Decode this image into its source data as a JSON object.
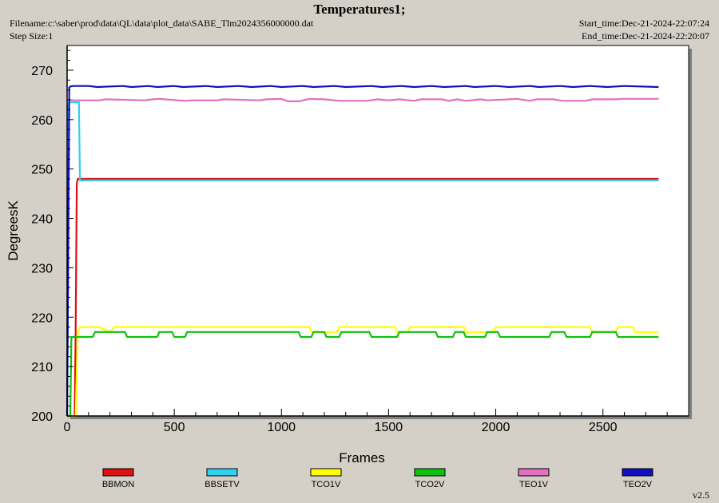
{
  "header": {
    "title": "Temperatures1;",
    "filename": "Filename:c:\\saber\\prod\\data\\QL\\data\\plot_data\\SABE_Tlm2024356000000.dat",
    "step_size": "Step Size:1",
    "start_time": "Start_time:Dec-21-2024-22:07:24",
    "end_time": "End_time:Dec-21-2024-22:20:07"
  },
  "version": "v2.5",
  "chart_data": {
    "type": "line",
    "xlabel": "Frames",
    "ylabel": "DegreesK",
    "xlim": [
      0,
      2900
    ],
    "ylim": [
      200,
      275
    ],
    "xticks": [
      0,
      500,
      1000,
      1500,
      2000,
      2500
    ],
    "yticks": [
      200,
      210,
      220,
      230,
      240,
      250,
      260,
      270
    ],
    "grid": false,
    "legend_position": "bottom",
    "series": [
      {
        "name": "BBMON",
        "color": "#e01010",
        "x": [
          0,
          35,
          40,
          45,
          50,
          2760
        ],
        "y": [
          200,
          200,
          217,
          247,
          248,
          248
        ]
      },
      {
        "name": "BBSETV",
        "color": "#30d0f0",
        "x": [
          0,
          5,
          10,
          20,
          55,
          60,
          2760
        ],
        "y": [
          200,
          263,
          263.5,
          263.5,
          263.5,
          247.7,
          247.7
        ]
      },
      {
        "name": "TCO1V",
        "color": "#ffff00",
        "x": [
          0,
          40,
          50,
          60,
          150,
          200,
          220,
          1130,
          1140,
          1260,
          1270,
          1530,
          1540,
          1590,
          1600,
          1850,
          1860,
          1990,
          2000,
          2440,
          2450,
          2560,
          2570,
          2640,
          2650,
          2760
        ],
        "y": [
          200,
          200,
          217,
          218,
          218,
          217,
          218,
          218,
          217,
          217,
          218,
          218,
          217,
          217,
          218,
          218,
          217,
          217,
          218,
          218,
          217,
          217,
          218,
          218,
          217,
          217
        ]
      },
      {
        "name": "TCO2V",
        "color": "#10c010",
        "x": [
          0,
          15,
          20,
          120,
          130,
          270,
          280,
          420,
          430,
          490,
          500,
          550,
          560,
          1080,
          1090,
          1140,
          1150,
          1200,
          1210,
          1270,
          1280,
          1410,
          1420,
          1540,
          1550,
          1720,
          1730,
          1800,
          1810,
          1850,
          1860,
          1950,
          1960,
          2010,
          2020,
          2250,
          2260,
          2320,
          2330,
          2440,
          2450,
          2560,
          2570,
          2760
        ],
        "y": [
          200,
          200,
          216,
          216,
          217,
          217,
          216,
          216,
          217,
          217,
          216,
          216,
          217,
          217,
          216,
          216,
          217,
          217,
          216,
          216,
          217,
          217,
          216,
          216,
          217,
          217,
          216,
          216,
          217,
          217,
          216,
          216,
          217,
          217,
          216,
          216,
          217,
          217,
          216,
          216,
          217,
          217,
          216,
          216
        ]
      },
      {
        "name": "TEO1V",
        "color": "#e070c0",
        "x": [
          0,
          10,
          15,
          30,
          150,
          180,
          360,
          400,
          430,
          550,
          580,
          700,
          730,
          900,
          930,
          1000,
          1030,
          1080,
          1120,
          1130,
          1200,
          1270,
          1280,
          1400,
          1450,
          1500,
          1550,
          1620,
          1650,
          1750,
          1780,
          1820,
          1860,
          1930,
          1960,
          2060,
          2100,
          2160,
          2190,
          2270,
          2310,
          2420,
          2450,
          2560,
          2590,
          2760
        ],
        "y": [
          200,
          263.5,
          264,
          263.9,
          263.9,
          264.1,
          263.9,
          264.1,
          264.2,
          263.8,
          263.9,
          263.9,
          264.1,
          263.9,
          264.1,
          264.2,
          263.7,
          263.7,
          264.1,
          264.2,
          264.1,
          263.8,
          263.8,
          263.8,
          264.1,
          263.9,
          264.1,
          263.8,
          264.1,
          264.1,
          263.8,
          264.1,
          263.8,
          264.1,
          263.9,
          264.1,
          264.2,
          263.8,
          264.1,
          264.1,
          263.8,
          263.8,
          264.1,
          264.1,
          264.2,
          264.2
        ]
      },
      {
        "name": "TEO2V",
        "color": "#1010c0",
        "x": [
          0,
          10,
          15,
          30,
          100,
          140,
          260,
          300,
          380,
          420,
          500,
          540,
          650,
          700,
          800,
          860,
          950,
          1000,
          1100,
          1150,
          1250,
          1300,
          1420,
          1470,
          1560,
          1620,
          1700,
          1760,
          1860,
          1900,
          2000,
          2060,
          2160,
          2200,
          2300,
          2360,
          2440,
          2520,
          2600,
          2760
        ],
        "y": [
          200,
          266.5,
          266.7,
          266.8,
          266.8,
          266.6,
          266.8,
          266.6,
          266.8,
          266.6,
          266.8,
          266.6,
          266.8,
          266.6,
          266.8,
          266.6,
          266.8,
          266.6,
          266.8,
          266.6,
          266.8,
          266.6,
          266.8,
          266.6,
          266.8,
          266.6,
          266.8,
          266.6,
          266.8,
          266.6,
          266.8,
          266.6,
          266.8,
          266.6,
          266.8,
          266.6,
          266.8,
          266.6,
          266.8,
          266.6
        ]
      }
    ]
  }
}
